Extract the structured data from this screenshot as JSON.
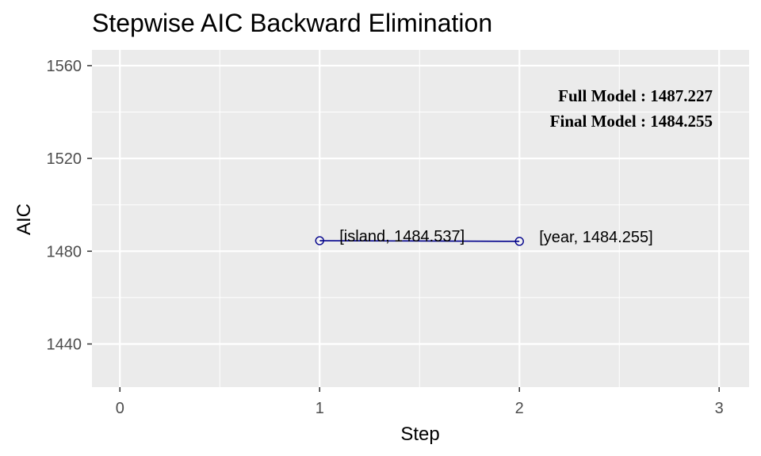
{
  "chart_data": {
    "type": "line",
    "title": "Stepwise AIC Backward Elimination",
    "xlabel": "Step",
    "ylabel": "AIC",
    "xlim": [
      -0.14,
      3.15
    ],
    "ylim": [
      1421.4,
      1566.8
    ],
    "x_ticks": [
      0,
      1,
      2,
      3
    ],
    "y_ticks": [
      1440,
      1480,
      1520,
      1560
    ],
    "grid": true,
    "series": [
      {
        "color": "#00008B",
        "points": [
          {
            "x": 1,
            "y": 1484.537,
            "label": "[island, 1484.537]"
          },
          {
            "x": 2,
            "y": 1484.255,
            "label": "[year, 1484.255]"
          }
        ]
      }
    ],
    "annotations": [
      "Full Model  : 1487.227",
      "Final Model : 1484.255"
    ],
    "panel_background": "#EBEBEB",
    "grid_color": "#FFFFFF"
  }
}
